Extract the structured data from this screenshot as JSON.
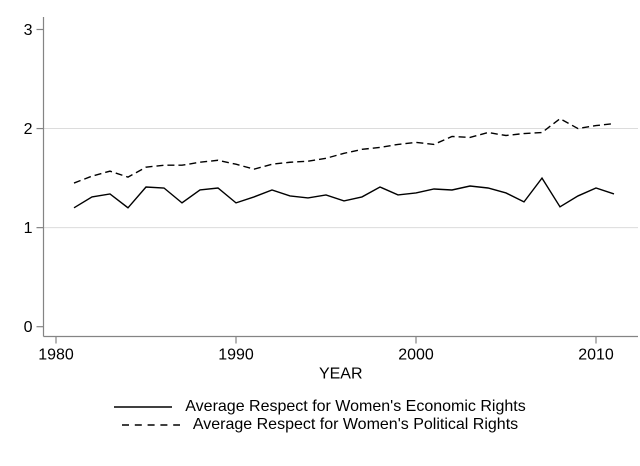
{
  "chart_data": {
    "type": "line",
    "title": "",
    "xlabel": "YEAR",
    "ylabel": "",
    "x": [
      1981,
      1982,
      1983,
      1984,
      1985,
      1986,
      1987,
      1988,
      1989,
      1990,
      1991,
      1992,
      1993,
      1994,
      1995,
      1996,
      1997,
      1998,
      1999,
      2000,
      2001,
      2002,
      2003,
      2004,
      2005,
      2006,
      2007,
      2008,
      2009,
      2010,
      2011
    ],
    "series": [
      {
        "name": "Average Respect for Women's Economic Rights",
        "style": "solid",
        "values": [
          1.2,
          1.31,
          1.34,
          1.2,
          1.41,
          1.4,
          1.25,
          1.38,
          1.4,
          1.25,
          1.31,
          1.38,
          1.32,
          1.3,
          1.33,
          1.27,
          1.31,
          1.41,
          1.33,
          1.35,
          1.39,
          1.38,
          1.42,
          1.4,
          1.35,
          1.26,
          1.5,
          1.21,
          1.32,
          1.4,
          1.34
        ]
      },
      {
        "name": "Average Respect for Women's Political Rights",
        "style": "dashed",
        "values": [
          1.45,
          1.52,
          1.57,
          1.51,
          1.61,
          1.63,
          1.63,
          1.66,
          1.68,
          1.64,
          1.59,
          1.64,
          1.66,
          1.67,
          1.7,
          1.75,
          1.79,
          1.81,
          1.84,
          1.86,
          1.84,
          1.92,
          1.91,
          1.96,
          1.93,
          1.95,
          1.96,
          2.1,
          2.0,
          2.03,
          2.05
        ]
      }
    ],
    "xticks": [
      1980,
      1990,
      2000,
      2010
    ],
    "yticks": [
      0,
      1,
      2,
      3
    ],
    "xlim": [
      1979.3,
      2012.4
    ],
    "ylim": [
      -0.1,
      3.12
    ],
    "grid_y_values": [
      1,
      2
    ],
    "legend_position": "bottom",
    "colors": {
      "line": "#000000",
      "axis": "#848484",
      "grid": "#dcdcdc",
      "tick_text": "#000000",
      "background": "#ffffff"
    }
  }
}
